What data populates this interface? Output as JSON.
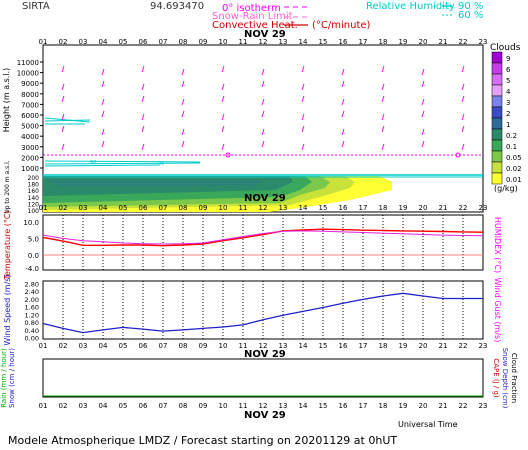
{
  "header": {
    "station": "SIRTA",
    "coords": "94.693470",
    "legend_isotherm": "0° isotherm",
    "legend_snow": "Snow-Rain Limit",
    "legend_conv": "Convective Heat.",
    "legend_conv_unit": "(°C/minute)",
    "legend_rh": "Relative Humidity",
    "rh_90": "90 %",
    "rh_60": "60 %"
  },
  "date_label": "NOV 29",
  "hours": [
    "01",
    "02",
    "03",
    "04",
    "05",
    "06",
    "07",
    "08",
    "09",
    "10",
    "11",
    "12",
    "13",
    "14",
    "15",
    "16",
    "17",
    "18",
    "19",
    "20",
    "21",
    "22",
    "23"
  ],
  "height_panel": {
    "ylabel": "Height  (m a.s.l.)",
    "ylabel2": "Up to 200 m a.s.l.",
    "yticks": [
      "11000",
      "10000",
      "9000",
      "8000",
      "7000",
      "6000",
      "5000",
      "4000",
      "3000",
      "2000",
      "1000"
    ],
    "low_ticks": [
      "200",
      "180",
      "160",
      "140",
      "120",
      "100"
    ]
  },
  "clouds": {
    "title": "Clouds",
    "unit": "(g/kg)",
    "scale": [
      "9",
      "6",
      "5",
      "4",
      "3",
      "2",
      "1",
      "0.2",
      "0.1",
      "0.05",
      "0.02",
      "0.01"
    ],
    "colors": [
      "#a100d6",
      "#c83cf0",
      "#d86ef5",
      "#e6a0fa",
      "#7a84e6",
      "#3a4dc6",
      "#2f6a9a",
      "#2b8a6a",
      "#3aa85a",
      "#7cc84a",
      "#c8e23a",
      "#ffff33"
    ]
  },
  "temp_panel": {
    "ylabel": "Temperature (°C)",
    "ylabel_right": "HUMIDEX (°C)",
    "yticks": [
      "10.0",
      "5.0",
      "0.0",
      "-4.0"
    ]
  },
  "wind_panel": {
    "ylabel": "Wind Speed (m/s)",
    "ylabel_right": "Wind Gust (m/s)",
    "yticks": [
      "2.80",
      "2.40",
      "2.00",
      "1.60",
      "1.20",
      "0.80",
      "0.40",
      "0.00"
    ]
  },
  "rain_panel": {
    "ylabel_left_1": "Rain (mm / hour)",
    "ylabel_left_2": "Snow (cm / hour)",
    "ylabel_right_1": "CAPE (J / g)",
    "ylabel_right_2": "Snow Depth (cm)",
    "ylabel_right_3": "Cloud Fraction",
    "xlabel": "Universal Time"
  },
  "footer": "Modele Atmospherique LMDZ / Forecast starting on 20201129 at 0hUT",
  "chart_data": [
    {
      "type": "line",
      "title": "Temperature",
      "x": [
        1,
        2,
        3,
        4,
        5,
        6,
        7,
        8,
        9,
        10,
        11,
        12,
        13,
        14,
        15,
        16,
        17,
        18,
        19,
        20,
        21,
        22,
        23
      ],
      "ylim": [
        -4,
        10
      ],
      "series": [
        {
          "name": "Temperature",
          "color": "#ff0000",
          "values": [
            5.3,
            4.2,
            2.9,
            2.9,
            3.0,
            3.0,
            2.8,
            3.0,
            3.3,
            4.3,
            5.2,
            6.2,
            7.3,
            7.6,
            7.8,
            7.7,
            7.5,
            7.4,
            7.3,
            7.2,
            7.1,
            7.0,
            6.9
          ]
        },
        {
          "name": "HUMIDEX",
          "color": "#e020e0",
          "values": [
            6.0,
            5.0,
            4.3,
            4.0,
            3.6,
            3.4,
            3.3,
            3.4,
            3.6,
            4.6,
            5.6,
            6.5,
            7.2,
            7.3,
            7.2,
            7.0,
            6.8,
            6.6,
            6.4,
            6.2,
            6.0,
            5.9,
            5.8
          ]
        }
      ]
    },
    {
      "type": "line",
      "title": "Wind Speed",
      "x": [
        1,
        2,
        3,
        4,
        5,
        6,
        7,
        8,
        9,
        10,
        11,
        12,
        13,
        14,
        15,
        16,
        17,
        18,
        19,
        20,
        21,
        22,
        23
      ],
      "ylim": [
        0,
        2.8
      ],
      "series": [
        {
          "name": "Wind Speed",
          "color": "#2020cc",
          "values": [
            0.75,
            0.5,
            0.28,
            0.42,
            0.55,
            0.46,
            0.36,
            0.42,
            0.5,
            0.57,
            0.68,
            0.95,
            1.18,
            1.38,
            1.58,
            1.8,
            2.0,
            2.18,
            2.32,
            2.18,
            2.05,
            2.05,
            2.05
          ]
        }
      ]
    },
    {
      "type": "line",
      "title": "Rain",
      "x": [
        1,
        2,
        3,
        4,
        5,
        6,
        7,
        8,
        9,
        10,
        11,
        12,
        13,
        14,
        15,
        16,
        17,
        18,
        19,
        20,
        21,
        22,
        23
      ],
      "series": [
        {
          "name": "Rain",
          "color": "#00aa00",
          "values": [
            0,
            0,
            0,
            0,
            0,
            0,
            0,
            0,
            0,
            0,
            0,
            0,
            0,
            0,
            0,
            0,
            0,
            0,
            0,
            0,
            0,
            0,
            0
          ]
        }
      ]
    }
  ]
}
